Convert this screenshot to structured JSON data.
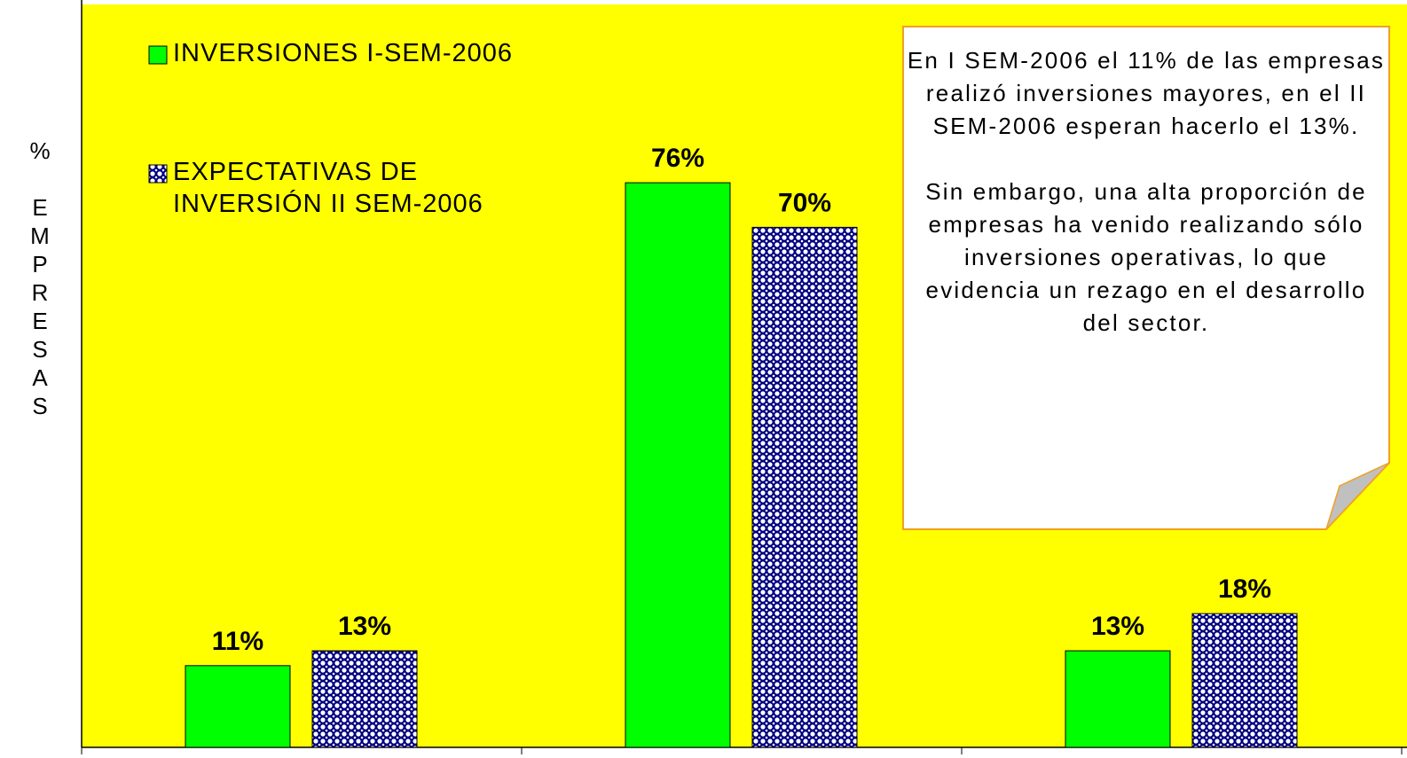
{
  "chart_data": {
    "type": "bar",
    "y_label": "% EMPRESAS",
    "categories": [
      null,
      null,
      null
    ],
    "series": [
      {
        "name": "INVERSIONES I-SEM-2006",
        "color": "#00ff00",
        "values": [
          11,
          76,
          13
        ],
        "value_labels": [
          "11%",
          "76%",
          "13%"
        ]
      },
      {
        "name": "EXPECTATIVAS DE INVERSIÓN II SEM-2006",
        "color": "#000080",
        "values": [
          13,
          70,
          18
        ],
        "value_labels": [
          "13%",
          "70%",
          "18%"
        ]
      }
    ],
    "ylim": [
      0,
      100
    ],
    "annotations": [
      "En I SEM-2006 el 11% de las empresas realizó inversiones mayores, en el II SEM-2006 esperan hacerlo el 13%.",
      "Sin embargo, una alta proporción de empresas ha venido realizando sólo inversiones operativas, lo que evidencia un rezago en el desarrollo del sector."
    ],
    "background": "#ffff00"
  }
}
